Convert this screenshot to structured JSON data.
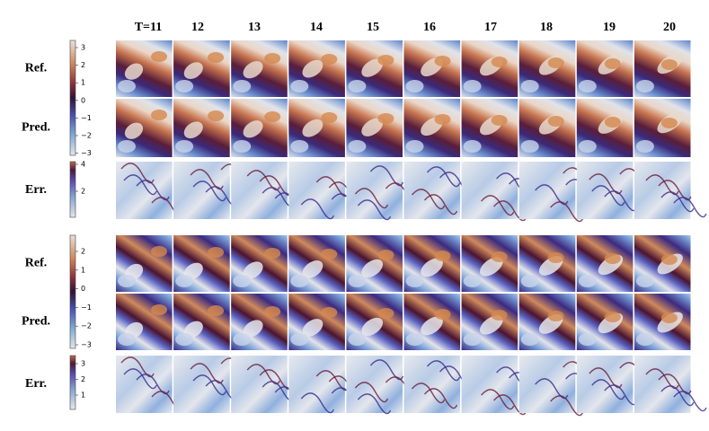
{
  "columns": [
    "T=11",
    "12",
    "13",
    "14",
    "15",
    "16",
    "17",
    "18",
    "19",
    "20"
  ],
  "groups": [
    {
      "rows": [
        "Ref.",
        "Pred.",
        "Err."
      ],
      "colorbar": {
        "ticks": [
          "3",
          "2",
          "1",
          "0",
          "−1",
          "−2",
          "−3"
        ]
      },
      "error_colorbar": {
        "ticks": [
          "4",
          "2"
        ]
      }
    },
    {
      "rows": [
        "Ref.",
        "Pred.",
        "Err."
      ],
      "colorbar": {
        "ticks": [
          "2",
          "1",
          "0",
          "−1",
          "−2",
          "−3"
        ]
      },
      "error_colorbar": {
        "ticks": [
          "3",
          "2",
          "1"
        ]
      }
    }
  ]
}
